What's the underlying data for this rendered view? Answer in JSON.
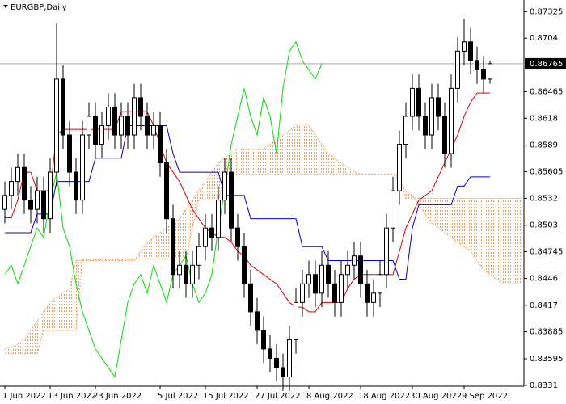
{
  "chart_data": {
    "type": "candlestick",
    "title": "EURGBP,Daily",
    "categories": [
      "1 Jun 2022",
      null,
      null,
      null,
      null,
      null,
      null,
      "13 Jun 2022",
      null,
      null,
      null,
      null,
      null,
      null,
      "23 Jun 2022",
      null,
      null,
      null,
      null,
      null,
      null,
      null,
      null,
      null,
      "5 Jul 2022",
      null,
      null,
      null,
      null,
      null,
      null,
      "15 Jul 2022",
      null,
      null,
      null,
      null,
      null,
      null,
      null,
      "27 Jul 2022",
      null,
      null,
      null,
      null,
      null,
      null,
      null,
      "8 Aug 2022",
      null,
      null,
      null,
      null,
      null,
      null,
      null,
      "18 Aug 2022",
      null,
      null,
      null,
      null,
      null,
      null,
      null,
      "30 Aug 2022",
      null,
      null,
      null,
      null,
      null,
      null,
      null,
      "9 Sep 2022",
      null,
      null,
      null,
      null,
      null,
      null,
      null,
      null,
      null
    ],
    "open": [
      0.852,
      0.8535,
      0.855,
      0.8565,
      0.853,
      0.852,
      0.854,
      0.851,
      0.856,
      0.866,
      0.86,
      0.856,
      0.853,
      0.86,
      0.862,
      0.859,
      0.861,
      0.863,
      0.86,
      0.862,
      0.86,
      0.864,
      0.862,
      0.86,
      0.861,
      0.857,
      0.851,
      0.845,
      0.846,
      0.844,
      0.846,
      0.848,
      0.85,
      0.849,
      0.853,
      0.856,
      0.85,
      0.848,
      0.844,
      0.841,
      0.839,
      0.837,
      0.836,
      0.835,
      0.834,
      0.838,
      0.842,
      0.844,
      0.845,
      0.843,
      0.846,
      0.844,
      0.842,
      0.845,
      0.846,
      0.847,
      0.844,
      0.842,
      0.843,
      0.845,
      0.85,
      0.854,
      0.859,
      0.862,
      0.865,
      0.862,
      0.86,
      0.864,
      0.862,
      0.858,
      0.865,
      0.869,
      0.87,
      0.868,
      0.867,
      0.866,
      null,
      null,
      null,
      null,
      null
    ],
    "high": [
      0.855,
      0.8565,
      0.858,
      0.858,
      0.8545,
      0.8555,
      0.8555,
      0.8575,
      0.872,
      0.8675,
      0.8615,
      0.8575,
      0.8615,
      0.8635,
      0.8635,
      0.8625,
      0.8645,
      0.8645,
      0.8635,
      0.8635,
      0.8655,
      0.8655,
      0.8635,
      0.8625,
      0.8625,
      0.8585,
      0.8525,
      0.8475,
      0.8475,
      0.8475,
      0.8495,
      0.8515,
      0.8515,
      0.8545,
      0.8575,
      0.8575,
      0.8515,
      0.8495,
      0.8455,
      0.8425,
      0.8405,
      0.8385,
      0.8375,
      0.8365,
      0.8395,
      0.8435,
      0.8455,
      0.8465,
      0.8465,
      0.8475,
      0.8475,
      0.8455,
      0.8465,
      0.8475,
      0.8485,
      0.8485,
      0.8455,
      0.8445,
      0.8465,
      0.8515,
      0.8555,
      0.8605,
      0.8635,
      0.8665,
      0.8665,
      0.8635,
      0.8655,
      0.8655,
      0.8635,
      0.8665,
      0.8705,
      0.8725,
      0.8715,
      0.8695,
      0.8685,
      0.868,
      null,
      null,
      null,
      null,
      null
    ],
    "low": [
      0.8505,
      0.852,
      0.8535,
      0.8515,
      0.8505,
      0.8505,
      0.8495,
      0.8495,
      0.8545,
      0.8585,
      0.8545,
      0.8515,
      0.8515,
      0.8585,
      0.8575,
      0.8575,
      0.8595,
      0.8585,
      0.8585,
      0.8585,
      0.8585,
      0.8605,
      0.8585,
      0.8585,
      0.8555,
      0.8495,
      0.8435,
      0.8435,
      0.8425,
      0.8425,
      0.8445,
      0.8465,
      0.8475,
      0.8475,
      0.8515,
      0.8485,
      0.8465,
      0.8425,
      0.8395,
      0.8375,
      0.8355,
      0.8345,
      0.8335,
      0.8325,
      0.8325,
      0.8365,
      0.8405,
      0.8425,
      0.8415,
      0.8415,
      0.8425,
      0.8405,
      0.8405,
      0.8435,
      0.8445,
      0.8425,
      0.8405,
      0.8405,
      0.8415,
      0.8435,
      0.8485,
      0.8525,
      0.8575,
      0.8605,
      0.8605,
      0.8585,
      0.8585,
      0.8605,
      0.8565,
      0.8565,
      0.8635,
      0.8675,
      0.8665,
      0.8655,
      0.8645,
      0.8655,
      null,
      null,
      null,
      null,
      null
    ],
    "close": [
      0.8535,
      0.855,
      0.8565,
      0.853,
      0.852,
      0.854,
      0.851,
      0.856,
      0.866,
      0.86,
      0.856,
      0.853,
      0.86,
      0.862,
      0.859,
      0.861,
      0.863,
      0.86,
      0.862,
      0.86,
      0.864,
      0.862,
      0.86,
      0.861,
      0.857,
      0.851,
      0.845,
      0.846,
      0.844,
      0.846,
      0.848,
      0.85,
      0.849,
      0.853,
      0.856,
      0.85,
      0.848,
      0.844,
      0.841,
      0.839,
      0.837,
      0.836,
      0.835,
      0.834,
      0.838,
      0.842,
      0.844,
      0.845,
      0.843,
      0.846,
      0.844,
      0.842,
      0.845,
      0.846,
      0.847,
      0.844,
      0.842,
      0.843,
      0.845,
      0.85,
      0.854,
      0.859,
      0.862,
      0.865,
      0.862,
      0.86,
      0.864,
      0.862,
      0.858,
      0.865,
      0.869,
      0.87,
      0.868,
      0.867,
      0.866,
      0.86765,
      null,
      null,
      null,
      null,
      null
    ],
    "lines": [
      {
        "color": "#e00000",
        "values": [
          0.8511,
          0.8511,
          0.853,
          0.856,
          0.856,
          0.854,
          0.854,
          0.854,
          0.86,
          0.8606,
          0.8606,
          0.8606,
          0.8606,
          0.8606,
          0.8606,
          0.8606,
          0.8606,
          0.8606,
          0.8625,
          0.8625,
          0.8625,
          0.8625,
          0.8625,
          0.861,
          0.859,
          0.857,
          0.856,
          0.855,
          0.8535,
          0.852,
          0.851,
          0.85,
          0.8495,
          0.849,
          0.849,
          0.8485,
          0.8475,
          0.847,
          0.846,
          0.8455,
          0.845,
          0.8445,
          0.844,
          0.843,
          0.842,
          0.8415,
          0.8415,
          0.841,
          0.841,
          0.842,
          0.842,
          0.842,
          0.842,
          0.8435,
          0.8445,
          0.845,
          0.845,
          0.845,
          0.845,
          0.845,
          0.845,
          0.8475,
          0.85,
          0.8515,
          0.853,
          0.8535,
          0.854,
          0.8555,
          0.857,
          0.8585,
          0.86,
          0.862,
          0.8635,
          0.8645,
          0.8645,
          0.8645,
          null,
          null,
          null,
          null,
          null
        ]
      },
      {
        "color": "#0000d0",
        "values": [
          0.8495,
          0.8495,
          0.8495,
          0.8495,
          0.8495,
          0.8515,
          0.8515,
          0.8515,
          0.855,
          0.855,
          0.855,
          0.855,
          0.855,
          0.855,
          0.8575,
          0.8575,
          0.8575,
          0.8575,
          0.8575,
          0.861,
          0.861,
          0.861,
          0.861,
          0.861,
          0.861,
          0.861,
          0.858,
          0.856,
          0.856,
          0.856,
          0.856,
          0.856,
          0.856,
          0.856,
          0.8535,
          0.8535,
          0.8535,
          0.8535,
          0.851,
          0.851,
          0.851,
          0.851,
          0.851,
          0.851,
          0.851,
          0.851,
          0.848,
          0.848,
          0.848,
          0.848,
          0.8465,
          0.8465,
          0.8465,
          0.8465,
          0.8465,
          0.8465,
          0.8465,
          0.8465,
          0.8465,
          0.8465,
          0.8465,
          0.8445,
          0.8445,
          0.85,
          0.8525,
          0.8525,
          0.8525,
          0.8525,
          0.8525,
          0.8525,
          0.8545,
          0.8545,
          0.8555,
          0.8555,
          0.8555,
          0.8555,
          null,
          null,
          null,
          null,
          null
        ]
      },
      {
        "color": "#00dd00",
        "values": [
          0.845,
          0.846,
          0.844,
          0.846,
          0.848,
          0.85,
          0.849,
          0.853,
          0.856,
          0.85,
          0.848,
          0.844,
          0.841,
          0.839,
          0.837,
          0.836,
          0.835,
          0.834,
          0.838,
          0.842,
          0.844,
          0.845,
          0.843,
          0.846,
          0.844,
          0.842,
          0.845,
          0.846,
          0.847,
          0.844,
          0.842,
          0.843,
          0.845,
          0.85,
          0.854,
          0.859,
          0.862,
          0.865,
          0.862,
          0.86,
          0.864,
          0.862,
          0.858,
          0.865,
          0.869,
          0.87,
          0.868,
          0.867,
          0.866,
          0.86765,
          null,
          null,
          null,
          null,
          null,
          null,
          null,
          null,
          null,
          null,
          null,
          null,
          null,
          null,
          null,
          null,
          null,
          null,
          null,
          null,
          null,
          null,
          null,
          null,
          null,
          null,
          null,
          null,
          null,
          null,
          null
        ]
      }
    ],
    "cloud": {
      "color": "#f0a060",
      "span_a": [
        0.837,
        0.8372,
        0.8375,
        0.838,
        0.839,
        0.84,
        0.841,
        0.842,
        0.8425,
        0.843,
        0.8435,
        0.8465,
        0.8465,
        0.8465,
        0.8465,
        0.8465,
        0.8465,
        0.8465,
        0.8465,
        0.8465,
        0.8465,
        0.8475,
        0.8485,
        0.849,
        0.8495,
        0.85,
        0.8505,
        0.851,
        0.852,
        0.853,
        0.854,
        0.855,
        0.856,
        0.857,
        0.8575,
        0.858,
        0.8585,
        0.8585,
        0.8585,
        0.8585,
        0.8585,
        0.859,
        0.8595,
        0.86,
        0.8605,
        0.861,
        0.8612,
        0.861,
        0.86,
        0.859,
        0.858,
        0.8575,
        0.857,
        0.8565,
        0.856,
        0.8558,
        0.8558,
        0.8558,
        0.8558,
        0.8558,
        0.8558,
        0.855,
        0.854,
        0.8535,
        0.8525,
        0.8515,
        0.8505,
        0.85,
        0.8495,
        0.849,
        0.8485,
        0.848,
        0.8475,
        0.8465,
        0.8455,
        0.845,
        0.8445,
        0.844,
        0.844,
        0.844,
        0.844
      ],
      "span_b": [
        0.8365,
        0.8365,
        0.8365,
        0.8365,
        0.8365,
        0.8365,
        0.839,
        0.839,
        0.839,
        0.839,
        0.839,
        0.839,
        0.8467,
        0.8467,
        0.8467,
        0.8467,
        0.8467,
        0.8467,
        0.8467,
        0.8467,
        0.8467,
        0.8467,
        0.8467,
        0.8467,
        0.8467,
        0.8467,
        0.8467,
        0.8467,
        0.8467,
        0.85,
        0.853,
        0.853,
        0.853,
        0.853,
        0.8558,
        0.8558,
        0.8558,
        0.8558,
        0.8558,
        0.8558,
        0.8558,
        0.8558,
        0.8558,
        0.8558,
        0.8558,
        0.8558,
        0.8558,
        0.8558,
        0.8558,
        0.8558,
        0.8558,
        0.8558,
        0.8558,
        0.8558,
        0.8558,
        0.8558,
        0.8558,
        0.8558,
        0.8558,
        0.8558,
        0.8558,
        0.8558,
        0.8532,
        0.8532,
        0.8532,
        0.8532,
        0.8532,
        0.8532,
        0.8532,
        0.8532,
        0.8532,
        0.8532,
        0.8532,
        0.8532,
        0.8532,
        0.8532,
        0.8532,
        0.8532,
        0.8532,
        0.8532,
        0.8532
      ]
    },
    "last_price": 0.86765,
    "ylim": [
      0.833,
      0.8745
    ],
    "yticks": [
      0.87325,
      0.8704,
      0.86465,
      0.8618,
      0.8589,
      0.85605,
      0.8532,
      0.8503,
      0.84745,
      0.8446,
      0.8417,
      0.83885,
      0.83595,
      0.8331
    ]
  }
}
